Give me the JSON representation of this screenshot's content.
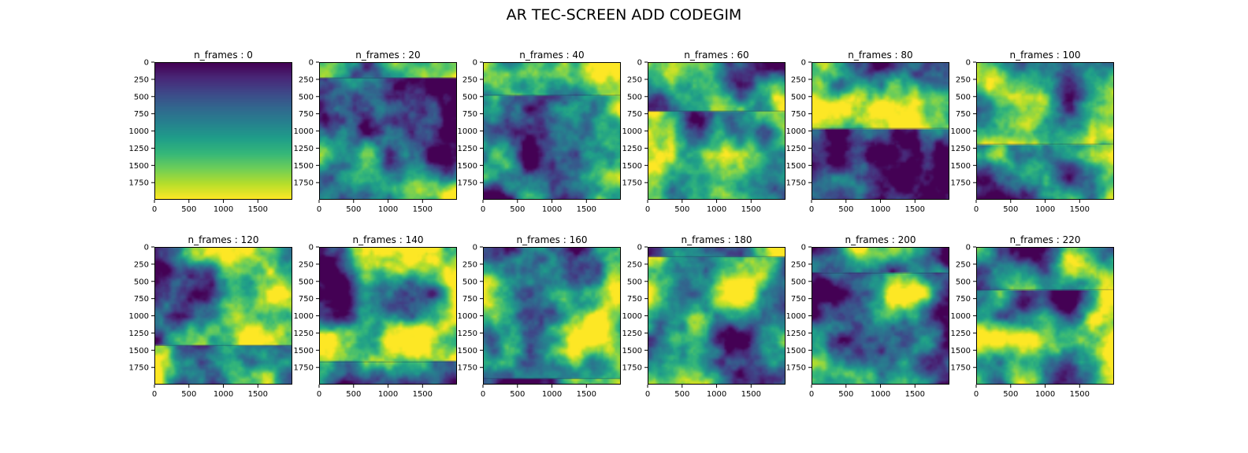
{
  "figure": {
    "title": "AR TEC-SCREEN ADD CODEGIM"
  },
  "chart_data": {
    "type": "heatmap",
    "colormap": "viridis",
    "colormap_stops": [
      "#440154",
      "#482878",
      "#3e4989",
      "#31688e",
      "#26828e",
      "#1f9e89",
      "#35b779",
      "#6ece58",
      "#b5de2b",
      "#fde725"
    ],
    "grid": false,
    "layout": {
      "rows": 2,
      "cols": 6
    },
    "x_range": [
      0,
      1999
    ],
    "y_range": [
      0,
      1999
    ],
    "y_inverted": true,
    "xticks": [
      0,
      500,
      1000,
      1500
    ],
    "yticks": [
      0,
      250,
      500,
      750,
      1000,
      1250,
      1500,
      1750
    ],
    "panels": [
      {
        "title": "n_frames : 0",
        "n_frames": 0,
        "pattern": "vertical-gradient",
        "seam_y": null
      },
      {
        "title": "n_frames : 20",
        "n_frames": 20,
        "pattern": "turbulent",
        "seam_y": 230
      },
      {
        "title": "n_frames : 40",
        "n_frames": 40,
        "pattern": "turbulent",
        "seam_y": 480
      },
      {
        "title": "n_frames : 60",
        "n_frames": 60,
        "pattern": "turbulent",
        "seam_y": 710
      },
      {
        "title": "n_frames : 80",
        "n_frames": 80,
        "pattern": "turbulent",
        "seam_y": 960
      },
      {
        "title": "n_frames : 100",
        "n_frames": 100,
        "pattern": "turbulent",
        "seam_y": 1190
      },
      {
        "title": "n_frames : 120",
        "n_frames": 120,
        "pattern": "turbulent",
        "seam_y": 1430
      },
      {
        "title": "n_frames : 140",
        "n_frames": 140,
        "pattern": "turbulent",
        "seam_y": 1670
      },
      {
        "title": "n_frames : 160",
        "n_frames": 160,
        "pattern": "turbulent",
        "seam_y": 1910
      },
      {
        "title": "n_frames : 180",
        "n_frames": 180,
        "pattern": "turbulent",
        "seam_y": 140
      },
      {
        "title": "n_frames : 200",
        "n_frames": 200,
        "pattern": "turbulent",
        "seam_y": 380
      },
      {
        "title": "n_frames : 220",
        "n_frames": 220,
        "pattern": "turbulent",
        "seam_y": 620
      }
    ]
  }
}
